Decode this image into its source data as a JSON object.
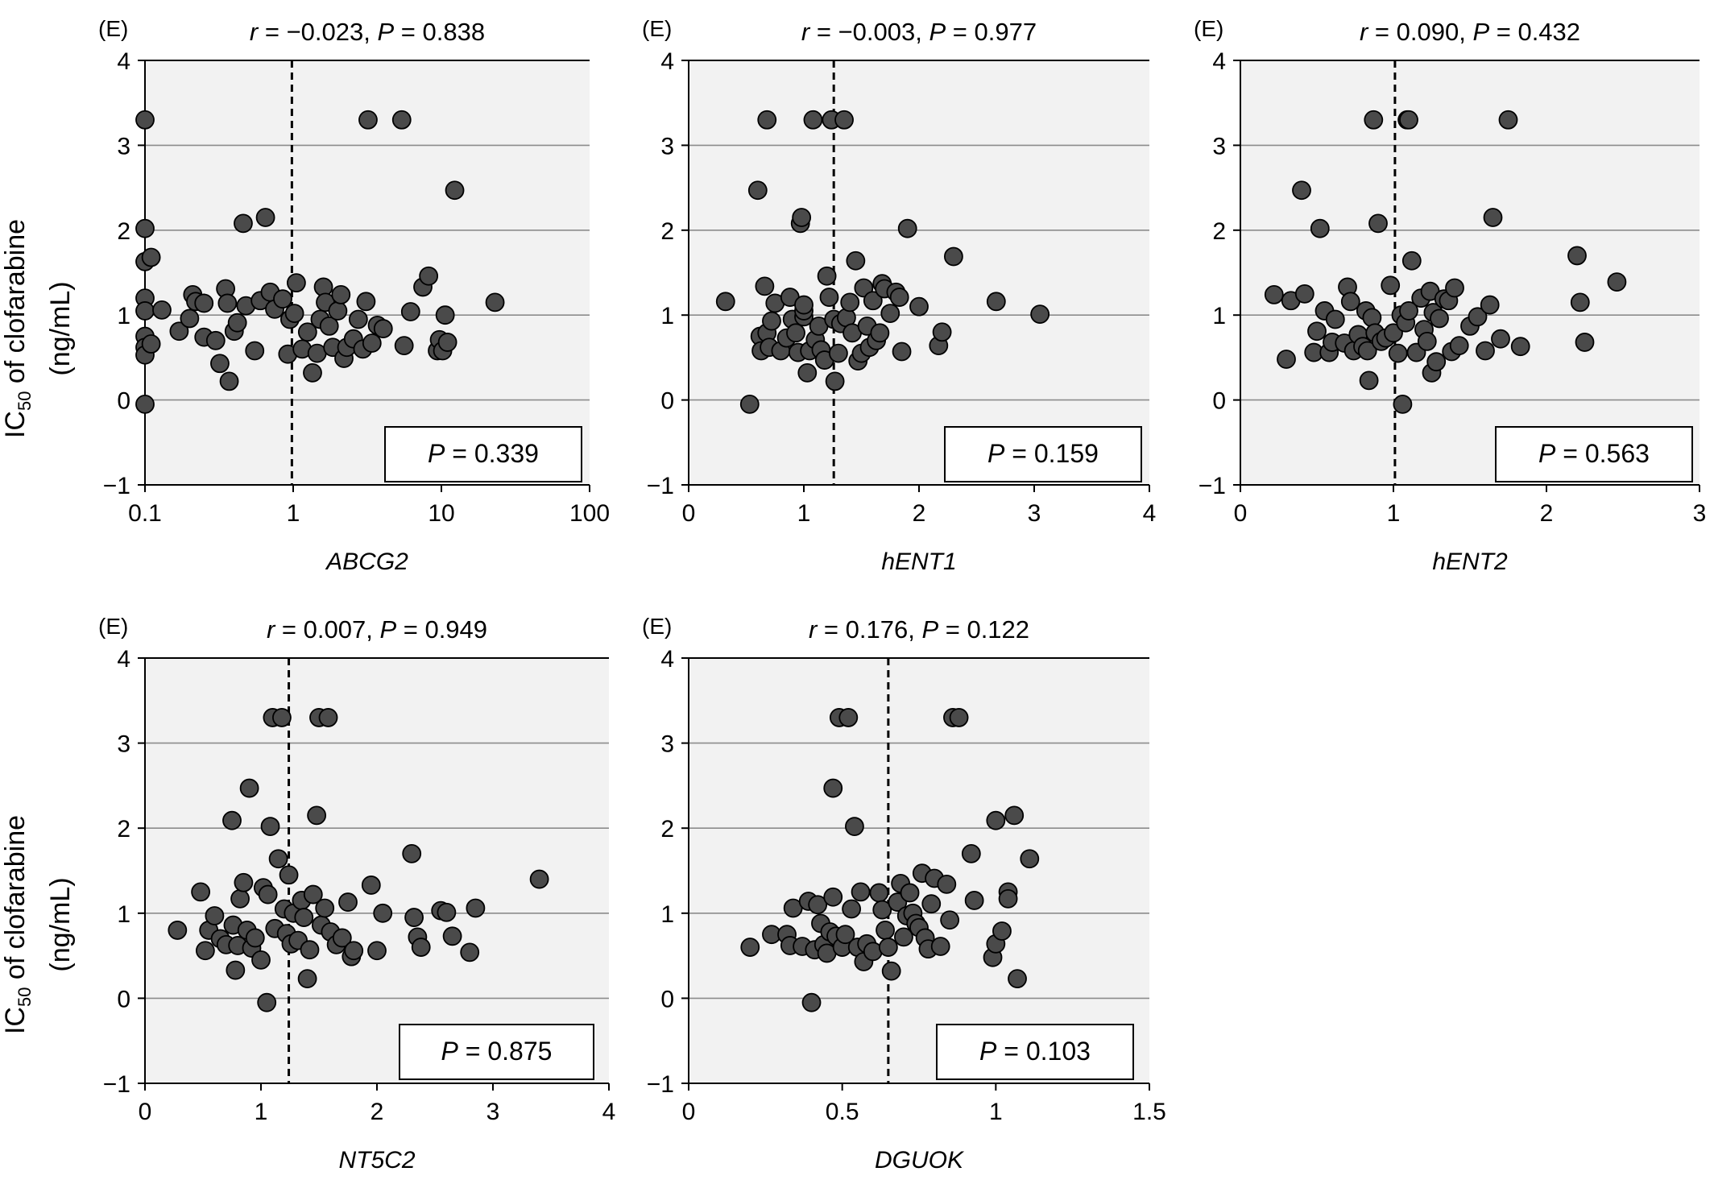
{
  "figure": {
    "ylabel_line1_main": "IC",
    "ylabel_line1_sub": "50",
    "ylabel_line1_rest": " of clofarabine",
    "ylabel_line2": "(ng/mL)"
  },
  "chart_data": [
    {
      "type": "scatter",
      "panel_tag": "(E)",
      "title": "r = −0.023, P = 0.838",
      "stat_box": "P  = 0.339",
      "xlabel": "ABCG2",
      "ylabel": "IC50 of clofarabine (ng/mL)",
      "xscale": "log",
      "xlim": [
        0.1,
        100
      ],
      "xticks": [
        "0.1",
        "1",
        "10",
        "100"
      ],
      "ylim": [
        -1,
        4
      ],
      "yticks": [
        "−1",
        "0",
        "1",
        "2",
        "3",
        "4"
      ],
      "cutoff_x": 0.98,
      "grid": true,
      "points": [
        [
          0.1,
          3.3
        ],
        [
          0.1,
          -0.05
        ],
        [
          0.1,
          2.02
        ],
        [
          0.1,
          1.63
        ],
        [
          0.11,
          1.68
        ],
        [
          0.1,
          1.2
        ],
        [
          0.1,
          1.05
        ],
        [
          0.1,
          0.75
        ],
        [
          0.1,
          0.62
        ],
        [
          0.1,
          0.53
        ],
        [
          0.11,
          0.66
        ],
        [
          0.13,
          1.06
        ],
        [
          0.17,
          0.81
        ],
        [
          0.2,
          0.96
        ],
        [
          0.21,
          1.24
        ],
        [
          0.22,
          1.16
        ],
        [
          0.25,
          1.14
        ],
        [
          0.25,
          0.74
        ],
        [
          0.3,
          0.7
        ],
        [
          0.32,
          0.43
        ],
        [
          0.35,
          1.31
        ],
        [
          0.36,
          1.14
        ],
        [
          0.37,
          0.22
        ],
        [
          0.4,
          0.81
        ],
        [
          0.42,
          0.91
        ],
        [
          0.46,
          2.08
        ],
        [
          0.48,
          1.11
        ],
        [
          0.55,
          0.58
        ],
        [
          0.6,
          1.17
        ],
        [
          0.65,
          2.15
        ],
        [
          0.7,
          1.27
        ],
        [
          0.75,
          1.07
        ],
        [
          0.85,
          1.19
        ],
        [
          0.92,
          0.54
        ],
        [
          0.95,
          0.95
        ],
        [
          1.02,
          1.02
        ],
        [
          1.05,
          1.38
        ],
        [
          1.15,
          0.6
        ],
        [
          1.25,
          0.8
        ],
        [
          1.35,
          0.32
        ],
        [
          1.45,
          0.55
        ],
        [
          1.52,
          0.95
        ],
        [
          1.6,
          1.33
        ],
        [
          1.65,
          1.15
        ],
        [
          1.75,
          0.87
        ],
        [
          1.85,
          0.62
        ],
        [
          2.0,
          1.05
        ],
        [
          2.1,
          1.24
        ],
        [
          2.2,
          0.49
        ],
        [
          2.3,
          0.62
        ],
        [
          2.55,
          0.72
        ],
        [
          2.75,
          0.95
        ],
        [
          2.95,
          0.6
        ],
        [
          3.1,
          1.16
        ],
        [
          3.2,
          3.3
        ],
        [
          3.4,
          0.67
        ],
        [
          3.7,
          0.88
        ],
        [
          4.05,
          0.84
        ],
        [
          5.4,
          3.3
        ],
        [
          5.6,
          0.64
        ],
        [
          6.2,
          1.04
        ],
        [
          7.5,
          1.33
        ],
        [
          8.2,
          1.46
        ],
        [
          9.4,
          0.58
        ],
        [
          9.7,
          0.71
        ],
        [
          10.2,
          0.58
        ],
        [
          10.6,
          1.0
        ],
        [
          11.0,
          0.68
        ],
        [
          12.3,
          2.47
        ],
        [
          23.0,
          1.15
        ]
      ]
    },
    {
      "type": "scatter",
      "panel_tag": "(E)",
      "title": "r = −0.003, P = 0.977",
      "stat_box": "P  = 0.159",
      "xlabel": "hENT1",
      "ylabel": "IC50 of clofarabine (ng/mL)",
      "xscale": "linear",
      "xlim": [
        0,
        4
      ],
      "xticks": [
        "0",
        "1",
        "2",
        "3",
        "4"
      ],
      "ylim": [
        -1,
        4
      ],
      "yticks": [
        "−1",
        "0",
        "1",
        "2",
        "3",
        "4"
      ],
      "cutoff_x": 1.26,
      "grid": true,
      "points": [
        [
          0.32,
          1.16
        ],
        [
          0.53,
          -0.05
        ],
        [
          0.6,
          2.47
        ],
        [
          0.62,
          0.75
        ],
        [
          0.63,
          0.58
        ],
        [
          0.66,
          1.34
        ],
        [
          0.68,
          3.3
        ],
        [
          0.68,
          0.79
        ],
        [
          0.7,
          0.62
        ],
        [
          0.72,
          0.93
        ],
        [
          0.75,
          1.14
        ],
        [
          0.8,
          0.58
        ],
        [
          0.85,
          0.73
        ],
        [
          0.88,
          1.21
        ],
        [
          0.9,
          0.95
        ],
        [
          0.93,
          0.79
        ],
        [
          0.95,
          0.56
        ],
        [
          0.97,
          2.08
        ],
        [
          0.98,
          2.15
        ],
        [
          1.0,
          0.98
        ],
        [
          1.0,
          1.05
        ],
        [
          1.0,
          1.12
        ],
        [
          1.03,
          0.32
        ],
        [
          1.05,
          0.58
        ],
        [
          1.08,
          3.3
        ],
        [
          1.1,
          0.71
        ],
        [
          1.13,
          0.87
        ],
        [
          1.15,
          0.59
        ],
        [
          1.18,
          0.47
        ],
        [
          1.2,
          1.46
        ],
        [
          1.22,
          1.21
        ],
        [
          1.24,
          3.3
        ],
        [
          1.26,
          0.95
        ],
        [
          1.27,
          0.22
        ],
        [
          1.3,
          0.55
        ],
        [
          1.32,
          0.9
        ],
        [
          1.35,
          3.3
        ],
        [
          1.37,
          0.97
        ],
        [
          1.4,
          1.15
        ],
        [
          1.42,
          0.79
        ],
        [
          1.45,
          1.64
        ],
        [
          1.47,
          0.46
        ],
        [
          1.5,
          0.55
        ],
        [
          1.52,
          1.32
        ],
        [
          1.55,
          0.87
        ],
        [
          1.57,
          0.62
        ],
        [
          1.6,
          1.17
        ],
        [
          1.63,
          0.7
        ],
        [
          1.66,
          0.79
        ],
        [
          1.68,
          1.37
        ],
        [
          1.7,
          1.31
        ],
        [
          1.75,
          1.02
        ],
        [
          1.8,
          1.27
        ],
        [
          1.83,
          1.21
        ],
        [
          1.85,
          0.57
        ],
        [
          1.9,
          2.02
        ],
        [
          2.0,
          1.1
        ],
        [
          2.17,
          0.64
        ],
        [
          2.2,
          0.8
        ],
        [
          2.3,
          1.69
        ],
        [
          2.67,
          1.16
        ],
        [
          3.05,
          1.01
        ]
      ]
    },
    {
      "type": "scatter",
      "panel_tag": "(E)",
      "title": "r = 0.090, P = 0.432",
      "stat_box": "P  = 0.563",
      "xlabel": "hENT2",
      "ylabel": "IC50 of clofarabine (ng/mL)",
      "xscale": "linear",
      "xlim": [
        0,
        3
      ],
      "xticks": [
        "0",
        "1",
        "2",
        "3"
      ],
      "ylim": [
        -1,
        4
      ],
      "yticks": [
        "−1",
        "0",
        "1",
        "2",
        "3",
        "4"
      ],
      "cutoff_x": 1.01,
      "grid": true,
      "points": [
        [
          0.22,
          1.24
        ],
        [
          0.3,
          0.48
        ],
        [
          0.33,
          1.17
        ],
        [
          0.4,
          2.47
        ],
        [
          0.42,
          1.25
        ],
        [
          0.48,
          0.56
        ],
        [
          0.5,
          0.81
        ],
        [
          0.52,
          2.02
        ],
        [
          0.55,
          1.05
        ],
        [
          0.58,
          0.56
        ],
        [
          0.6,
          0.68
        ],
        [
          0.62,
          0.95
        ],
        [
          0.68,
          0.67
        ],
        [
          0.7,
          1.33
        ],
        [
          0.72,
          1.16
        ],
        [
          0.74,
          0.58
        ],
        [
          0.77,
          0.77
        ],
        [
          0.8,
          0.63
        ],
        [
          0.82,
          1.05
        ],
        [
          0.83,
          0.58
        ],
        [
          0.84,
          0.23
        ],
        [
          0.86,
          0.97
        ],
        [
          0.87,
          3.3
        ],
        [
          0.88,
          0.79
        ],
        [
          0.9,
          2.08
        ],
        [
          0.92,
          0.69
        ],
        [
          0.95,
          0.73
        ],
        [
          0.98,
          1.35
        ],
        [
          1.0,
          0.79
        ],
        [
          1.03,
          0.55
        ],
        [
          1.05,
          1.0
        ],
        [
          1.06,
          -0.05
        ],
        [
          1.08,
          0.91
        ],
        [
          1.09,
          3.3
        ],
        [
          1.1,
          3.3
        ],
        [
          1.1,
          1.05
        ],
        [
          1.12,
          1.64
        ],
        [
          1.15,
          0.56
        ],
        [
          1.18,
          1.2
        ],
        [
          1.2,
          0.83
        ],
        [
          1.22,
          0.69
        ],
        [
          1.24,
          1.28
        ],
        [
          1.25,
          0.32
        ],
        [
          1.26,
          1.03
        ],
        [
          1.28,
          0.45
        ],
        [
          1.3,
          0.96
        ],
        [
          1.33,
          1.19
        ],
        [
          1.36,
          1.17
        ],
        [
          1.38,
          0.57
        ],
        [
          1.4,
          1.32
        ],
        [
          1.43,
          0.64
        ],
        [
          1.5,
          0.87
        ],
        [
          1.55,
          0.98
        ],
        [
          1.6,
          0.58
        ],
        [
          1.63,
          1.12
        ],
        [
          1.65,
          2.15
        ],
        [
          1.7,
          0.72
        ],
        [
          1.75,
          3.3
        ],
        [
          1.83,
          0.63
        ],
        [
          2.2,
          1.7
        ],
        [
          2.22,
          1.15
        ],
        [
          2.25,
          0.68
        ],
        [
          2.46,
          1.39
        ]
      ]
    },
    {
      "type": "scatter",
      "panel_tag": "(E)",
      "title": "r = 0.007, P = 0.949",
      "stat_box": "P  = 0.875",
      "xlabel": "NT5C2",
      "ylabel": "IC50 of clofarabine (ng/mL)",
      "xscale": "linear",
      "xlim": [
        0,
        4
      ],
      "xticks": [
        "0",
        "1",
        "2",
        "3",
        "4"
      ],
      "ylim": [
        -1,
        4
      ],
      "yticks": [
        "−1",
        "0",
        "1",
        "2",
        "3",
        "4"
      ],
      "cutoff_x": 1.24,
      "grid": true,
      "points": [
        [
          0.28,
          0.8
        ],
        [
          0.48,
          1.25
        ],
        [
          0.52,
          0.56
        ],
        [
          0.55,
          0.8
        ],
        [
          0.6,
          0.97
        ],
        [
          0.65,
          0.7
        ],
        [
          0.7,
          0.63
        ],
        [
          0.75,
          2.09
        ],
        [
          0.76,
          0.86
        ],
        [
          0.78,
          0.33
        ],
        [
          0.8,
          0.62
        ],
        [
          0.82,
          1.17
        ],
        [
          0.85,
          1.36
        ],
        [
          0.88,
          0.8
        ],
        [
          0.9,
          2.47
        ],
        [
          0.92,
          0.59
        ],
        [
          0.95,
          0.71
        ],
        [
          1.0,
          0.45
        ],
        [
          1.02,
          1.3
        ],
        [
          1.05,
          -0.05
        ],
        [
          1.06,
          1.22
        ],
        [
          1.08,
          2.02
        ],
        [
          1.1,
          3.3
        ],
        [
          1.12,
          0.82
        ],
        [
          1.15,
          1.64
        ],
        [
          1.18,
          3.3
        ],
        [
          1.2,
          1.05
        ],
        [
          1.22,
          0.76
        ],
        [
          1.24,
          1.45
        ],
        [
          1.26,
          0.64
        ],
        [
          1.28,
          1.0
        ],
        [
          1.32,
          0.68
        ],
        [
          1.35,
          1.15
        ],
        [
          1.37,
          0.95
        ],
        [
          1.4,
          0.23
        ],
        [
          1.42,
          0.57
        ],
        [
          1.45,
          1.22
        ],
        [
          1.48,
          2.15
        ],
        [
          1.5,
          3.3
        ],
        [
          1.52,
          0.86
        ],
        [
          1.55,
          1.06
        ],
        [
          1.58,
          3.3
        ],
        [
          1.6,
          0.78
        ],
        [
          1.65,
          0.63
        ],
        [
          1.7,
          0.71
        ],
        [
          1.75,
          1.13
        ],
        [
          1.78,
          0.49
        ],
        [
          1.8,
          0.56
        ],
        [
          1.95,
          1.33
        ],
        [
          2.0,
          0.56
        ],
        [
          2.05,
          1.0
        ],
        [
          2.3,
          1.7
        ],
        [
          2.32,
          0.95
        ],
        [
          2.35,
          0.72
        ],
        [
          2.38,
          0.6
        ],
        [
          2.55,
          1.03
        ],
        [
          2.6,
          1.01
        ],
        [
          2.65,
          0.73
        ],
        [
          2.8,
          0.54
        ],
        [
          2.85,
          1.06
        ],
        [
          3.4,
          1.4
        ]
      ]
    },
    {
      "type": "scatter",
      "panel_tag": "(E)",
      "title": "r = 0.176, P = 0.122",
      "stat_box": "P  = 0.103",
      "xlabel": "DGUOK",
      "ylabel": "IC50 of clofarabine (ng/mL)",
      "xscale": "linear",
      "xlim": [
        0,
        1.5
      ],
      "xticks": [
        "0",
        "0.5",
        "1",
        "1.5"
      ],
      "ylim": [
        -1,
        4
      ],
      "yticks": [
        "−1",
        "0",
        "1",
        "2",
        "3",
        "4"
      ],
      "cutoff_x": 0.65,
      "grid": true,
      "points": [
        [
          0.2,
          0.6
        ],
        [
          0.27,
          0.75
        ],
        [
          0.32,
          0.75
        ],
        [
          0.33,
          0.62
        ],
        [
          0.34,
          1.06
        ],
        [
          0.37,
          0.61
        ],
        [
          0.39,
          1.14
        ],
        [
          0.4,
          -0.05
        ],
        [
          0.41,
          0.57
        ],
        [
          0.42,
          1.1
        ],
        [
          0.43,
          0.88
        ],
        [
          0.44,
          0.63
        ],
        [
          0.45,
          0.53
        ],
        [
          0.46,
          0.78
        ],
        [
          0.47,
          1.19
        ],
        [
          0.47,
          2.47
        ],
        [
          0.48,
          0.73
        ],
        [
          0.49,
          3.3
        ],
        [
          0.5,
          0.6
        ],
        [
          0.51,
          0.75
        ],
        [
          0.52,
          3.3
        ],
        [
          0.53,
          1.05
        ],
        [
          0.54,
          2.02
        ],
        [
          0.55,
          0.6
        ],
        [
          0.56,
          1.25
        ],
        [
          0.57,
          0.43
        ],
        [
          0.58,
          0.64
        ],
        [
          0.6,
          0.55
        ],
        [
          0.62,
          1.24
        ],
        [
          0.63,
          1.04
        ],
        [
          0.64,
          0.8
        ],
        [
          0.65,
          0.6
        ],
        [
          0.66,
          0.32
        ],
        [
          0.68,
          1.13
        ],
        [
          0.69,
          1.35
        ],
        [
          0.7,
          0.72
        ],
        [
          0.71,
          0.97
        ],
        [
          0.72,
          1.24
        ],
        [
          0.73,
          1.0
        ],
        [
          0.74,
          0.88
        ],
        [
          0.75,
          0.83
        ],
        [
          0.76,
          1.47
        ],
        [
          0.77,
          0.71
        ],
        [
          0.78,
          0.58
        ],
        [
          0.79,
          1.11
        ],
        [
          0.8,
          1.41
        ],
        [
          0.82,
          0.61
        ],
        [
          0.84,
          1.34
        ],
        [
          0.85,
          0.92
        ],
        [
          0.86,
          3.3
        ],
        [
          0.88,
          3.3
        ],
        [
          0.92,
          1.7
        ],
        [
          0.93,
          1.15
        ],
        [
          0.99,
          0.48
        ],
        [
          1.0,
          0.64
        ],
        [
          1.0,
          2.09
        ],
        [
          1.02,
          0.79
        ],
        [
          1.04,
          1.25
        ],
        [
          1.04,
          1.17
        ],
        [
          1.06,
          2.15
        ],
        [
          1.07,
          0.23
        ],
        [
          1.11,
          1.64
        ]
      ]
    }
  ]
}
